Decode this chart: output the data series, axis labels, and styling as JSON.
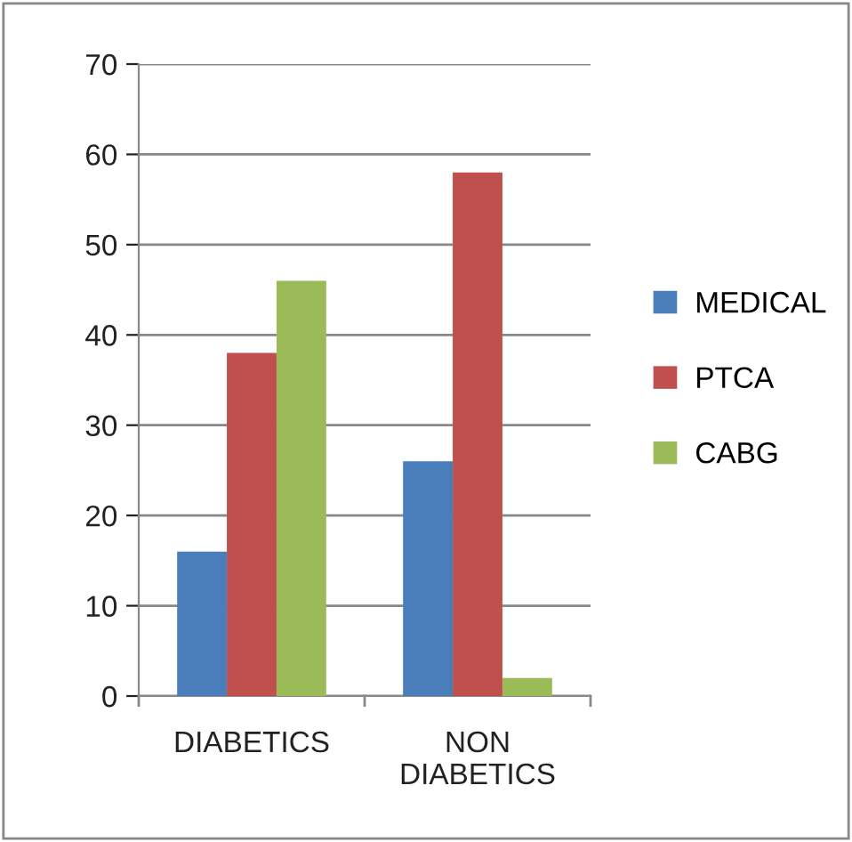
{
  "chart_data": {
    "type": "bar",
    "categories": [
      "DIABETICS",
      "NON DIABETICS"
    ],
    "series": [
      {
        "name": "MEDICAL",
        "color": "#4a7ebb",
        "values": [
          16,
          26
        ]
      },
      {
        "name": "PTCA",
        "color": "#c0504d",
        "values": [
          38,
          58
        ]
      },
      {
        "name": "CABG",
        "color": "#9bbb59",
        "values": [
          46,
          2
        ]
      }
    ],
    "ylim": [
      0,
      70
    ],
    "yticks": [
      0,
      10,
      20,
      30,
      40,
      50,
      60,
      70
    ],
    "grid": "y",
    "legend": "right"
  }
}
